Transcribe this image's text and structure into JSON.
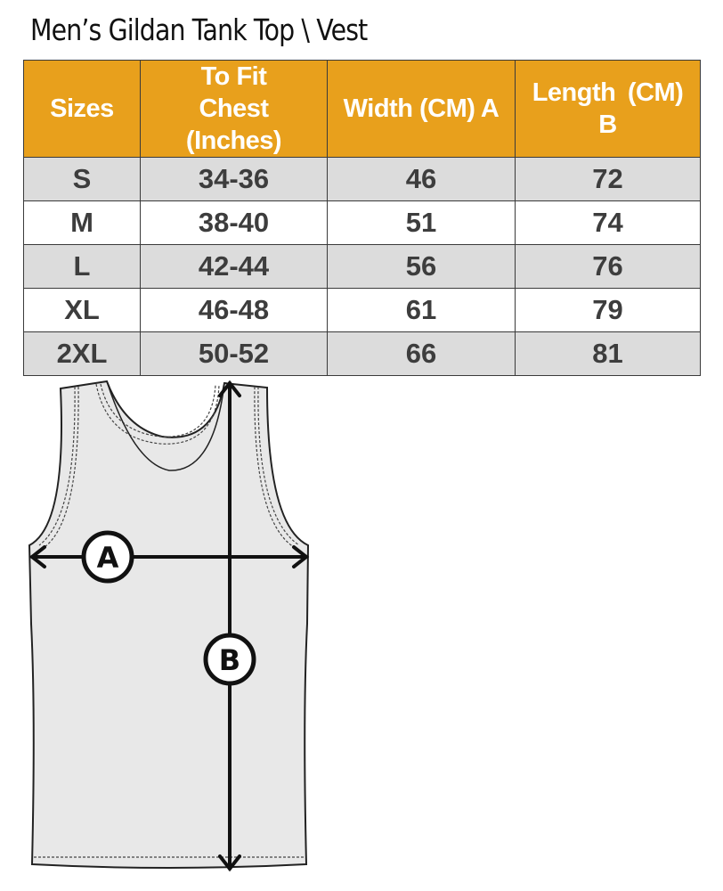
{
  "title": "Men’s Gildan Tank Top \\ Vest",
  "table": {
    "headers": [
      "Sizes",
      "To Fit Chest (Inches)",
      "Width (CM) A",
      "Length  (CM) B"
    ],
    "rows": [
      [
        "S",
        "34-36",
        "46",
        "72"
      ],
      [
        "M",
        "38-40",
        "51",
        "74"
      ],
      [
        "L",
        "42-44",
        "56",
        "76"
      ],
      [
        "XL",
        "46-48",
        "61",
        "79"
      ],
      [
        "2XL",
        "50-52",
        "66",
        "81"
      ]
    ]
  },
  "diagram": {
    "label_a": "A",
    "label_b": "B"
  },
  "colors": {
    "header": "#E8A01C",
    "row_alt": "#dcdcdc"
  }
}
